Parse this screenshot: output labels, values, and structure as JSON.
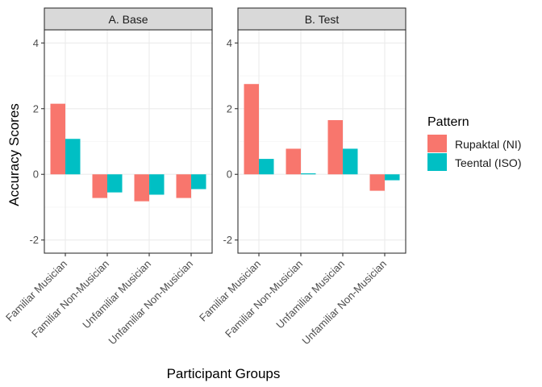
{
  "chart_data": {
    "type": "bar",
    "xlabel": "Participant Groups",
    "ylabel": "Accuracy Scores",
    "ylim": [
      -2.4,
      4.4
    ],
    "yticks": [
      -2,
      0,
      2,
      4
    ],
    "ytick_labels": [
      "-2",
      "0",
      "2",
      "4"
    ],
    "grid": true,
    "legend": {
      "title": "Pattern",
      "placement": "right",
      "entries": [
        "Rupaktal (NI)",
        "Teental (ISO)"
      ]
    },
    "categories": [
      "Familiar Musician",
      "Familiar Non-Musician",
      "Unfamiliar Musician",
      "Unfamiliar Non-Musician"
    ],
    "colors": {
      "Rupaktal (NI)": "#f8766d",
      "Teental (ISO)": "#00bfc4"
    },
    "panels": [
      {
        "title": "A. Base",
        "series": [
          {
            "name": "Rupaktal (NI)",
            "values": [
              2.15,
              -0.72,
              -0.82,
              -0.72
            ]
          },
          {
            "name": "Teental (ISO)",
            "values": [
              1.08,
              -0.55,
              -0.62,
              -0.45
            ]
          }
        ]
      },
      {
        "title": "B. Test",
        "series": [
          {
            "name": "Rupaktal (NI)",
            "values": [
              2.75,
              0.78,
              1.65,
              -0.5
            ]
          },
          {
            "name": "Teental (ISO)",
            "values": [
              0.47,
              0.03,
              0.78,
              -0.18
            ]
          }
        ]
      }
    ]
  }
}
